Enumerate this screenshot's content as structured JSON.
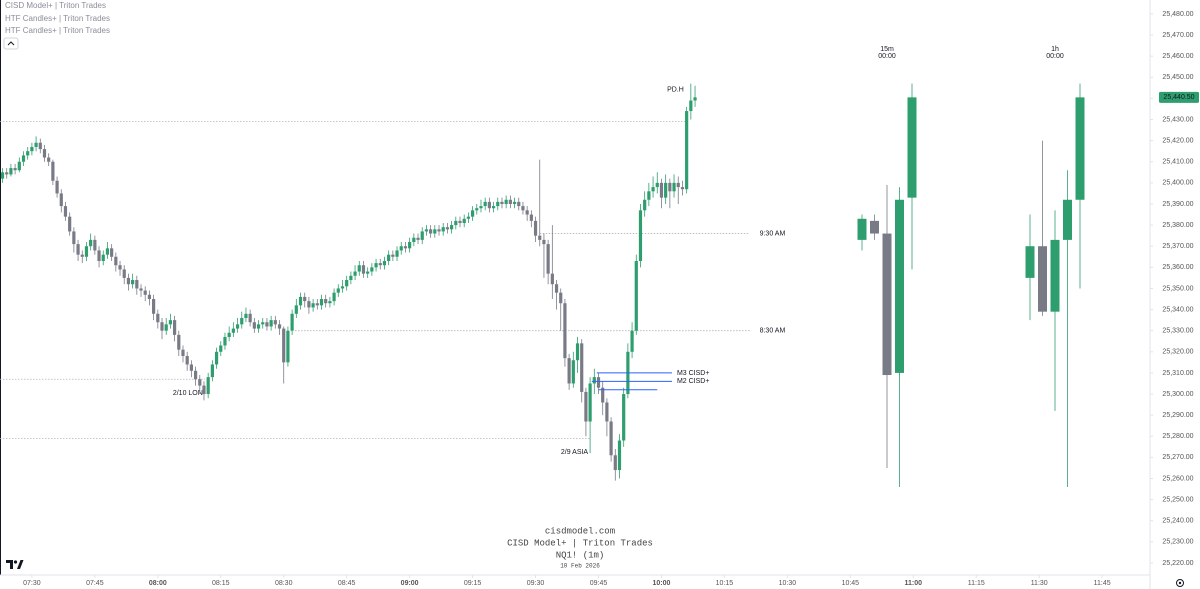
{
  "chart_data": {
    "type": "candlestick",
    "indicators": [
      "CISD Model+ | Triton Trades",
      "HTF Candles+ | Triton Trades",
      "HTF Candles+ | Triton Trades"
    ],
    "watermark": {
      "site": "cisdmodel.com",
      "title": "CISD Model+ | Triton Trades",
      "symbol": "NQ1! (1m)",
      "date": "10 Feb 2026"
    },
    "up_color": "#2f9e6e",
    "down_color": "#787b86",
    "level_color": "#b2b5be",
    "cisd_color": "#2962ff",
    "x": [
      443,
      444,
      445,
      446,
      447,
      448,
      449,
      450,
      451,
      452,
      453,
      454,
      455,
      456,
      457,
      458,
      459,
      460,
      461,
      462,
      463,
      464,
      465,
      466,
      467,
      468,
      469,
      470,
      471,
      472,
      473,
      474,
      475,
      476,
      477,
      478,
      479,
      480,
      481,
      482,
      483,
      484,
      485,
      486,
      487,
      488,
      489,
      490,
      491,
      492,
      493,
      494,
      495,
      496,
      497,
      498,
      499,
      500,
      501,
      502,
      503,
      504,
      505,
      506,
      507,
      508,
      509,
      510,
      511,
      512,
      513,
      514,
      515,
      516,
      517,
      518,
      519,
      520,
      521,
      522,
      523,
      524,
      525,
      526,
      527,
      528,
      529,
      530,
      531,
      532,
      533,
      534,
      535,
      536,
      537,
      538,
      539,
      540,
      541,
      542,
      543,
      544,
      545,
      546,
      547,
      548,
      549,
      550,
      551,
      552,
      553,
      554,
      555,
      556,
      557,
      558,
      559,
      560,
      561,
      562,
      563,
      564,
      565,
      566,
      567,
      568,
      569,
      570,
      571,
      572,
      573,
      574,
      575,
      576,
      577,
      578,
      579,
      580,
      581,
      582,
      583,
      584,
      585,
      586,
      587,
      588,
      589,
      590,
      591,
      592,
      593,
      594,
      595,
      596,
      597,
      598,
      599,
      600,
      601,
      602,
      603,
      604,
      605,
      606,
      607,
      608
    ],
    "open": [
      25402,
      25405,
      25404,
      25407,
      25406,
      25410,
      25413,
      25415,
      25417,
      25419,
      25416,
      25412,
      25410,
      25401,
      25395,
      25389,
      25384,
      25377,
      25371,
      25366,
      25365,
      25370,
      25373,
      25368,
      25363,
      25366,
      25369,
      25365,
      25361,
      25359,
      25355,
      25352,
      25354,
      25350,
      25349,
      25347,
      25345,
      25338,
      25334,
      25330,
      25333,
      25335,
      25328,
      25321,
      25318,
      25314,
      25311,
      25307,
      25304,
      25300,
      25308,
      25314,
      25320,
      25323,
      25327,
      25329,
      25331,
      25333,
      25336,
      25338,
      25334,
      25331,
      25333,
      25334,
      25332,
      25335,
      25333,
      25331,
      25315,
      25330,
      25338,
      25342,
      25346,
      25344,
      25341,
      25343,
      25342,
      25345,
      25343,
      25344,
      25348,
      25350,
      25351,
      25354,
      25356,
      25358,
      25361,
      25357,
      25358,
      25360,
      25362,
      25361,
      25363,
      25366,
      25365,
      25368,
      25370,
      25369,
      25372,
      25374,
      25373,
      25377,
      25378,
      25376,
      25378,
      25377,
      25379,
      25378,
      25380,
      25382,
      25381,
      25383,
      25384,
      25387,
      25388,
      25389,
      25391,
      25388,
      25389,
      25391,
      25390,
      25392,
      25390,
      25391,
      25389,
      25387,
      25385,
      25382,
      25375,
      25373,
      25371,
      25357,
      25352,
      25348,
      25343,
      25317,
      25305,
      25316,
      25324,
      25301,
      25287,
      25305,
      25308,
      25303,
      25296,
      25287,
      25271,
      25264,
      25278,
      25300,
      25320,
      25330,
      25363,
      25387,
      25392,
      25396,
      25398,
      25400,
      25393,
      25400,
      25396,
      25400,
      25398,
      25397,
      25434,
      25439
    ],
    "high": [
      25407,
      25407,
      25409,
      25409,
      25412,
      25415,
      25417,
      25419,
      25422,
      25421,
      25418,
      25414,
      25411,
      25403,
      25397,
      25391,
      25386,
      25379,
      25373,
      25368,
      25372,
      25376,
      25375,
      25370,
      25368,
      25372,
      25371,
      25367,
      25363,
      25361,
      25357,
      25357,
      25356,
      25352,
      25351,
      25349,
      25347,
      25340,
      25336,
      25336,
      25338,
      25337,
      25330,
      25323,
      25320,
      25316,
      25313,
      25309,
      25306,
      25310,
      25316,
      25322,
      25325,
      25329,
      25332,
      25334,
      25336,
      25339,
      25341,
      25340,
      25336,
      25335,
      25336,
      25336,
      25337,
      25337,
      25335,
      25332,
      25332,
      25340,
      25345,
      25348,
      25348,
      25346,
      25345,
      25345,
      25347,
      25347,
      25346,
      25350,
      25352,
      25354,
      25356,
      25358,
      25361,
      25363,
      25363,
      25360,
      25362,
      25364,
      25364,
      25365,
      25368,
      25368,
      25370,
      25372,
      25372,
      25374,
      25376,
      25376,
      25379,
      25380,
      25380,
      25380,
      25380,
      25381,
      25381,
      25382,
      25384,
      25384,
      25385,
      25386,
      25389,
      25390,
      25392,
      25393,
      25393,
      25391,
      25393,
      25393,
      25394,
      25394,
      25393,
      25393,
      25391,
      25389,
      25387,
      25384,
      25411,
      25376,
      25373,
      25380,
      25354,
      25350,
      25345,
      25319,
      25320,
      25327,
      25326,
      25303,
      25308,
      25312,
      25310,
      25306,
      25298,
      25289,
      25274,
      25281,
      25303,
      25324,
      25334,
      25366,
      25390,
      25396,
      25400,
      25403,
      25405,
      25402,
      25404,
      25402,
      25404,
      25403,
      25401,
      25436,
      25447,
      25446
    ],
    "low": [
      25400,
      25402,
      25403,
      25404,
      25405,
      25408,
      25411,
      25413,
      25415,
      25414,
      25410,
      25408,
      25399,
      25393,
      25386,
      25382,
      25375,
      25367,
      25363,
      25362,
      25363,
      25368,
      25366,
      25360,
      25361,
      25364,
      25363,
      25358,
      25356,
      25352,
      25349,
      25350,
      25347,
      25346,
      25344,
      25342,
      25335,
      25331,
      25326,
      25328,
      25331,
      25325,
      25318,
      25315,
      25311,
      25308,
      25304,
      25300,
      25297,
      25298,
      25306,
      25312,
      25318,
      25321,
      25325,
      25327,
      25329,
      25331,
      25334,
      25332,
      25329,
      25329,
      25331,
      25330,
      25330,
      25331,
      25328,
      25305,
      25313,
      25328,
      25336,
      25340,
      25341,
      25338,
      25339,
      25340,
      25340,
      25341,
      25341,
      25342,
      25346,
      25348,
      25349,
      25352,
      25354,
      25356,
      25355,
      25355,
      25356,
      25358,
      25359,
      25359,
      25361,
      25363,
      25363,
      25366,
      25367,
      25367,
      25370,
      25371,
      25371,
      25375,
      25374,
      25374,
      25375,
      25375,
      25376,
      25376,
      25378,
      25379,
      25379,
      25381,
      25382,
      25385,
      25386,
      25387,
      25386,
      25386,
      25387,
      25388,
      25388,
      25388,
      25388,
      25387,
      25385,
      25382,
      25379,
      25372,
      25370,
      25355,
      25352,
      25345,
      25340,
      25330,
      25313,
      25302,
      25303,
      25310,
      25296,
      25280,
      25272,
      25300,
      25300,
      25290,
      25280,
      25268,
      25259,
      25260,
      25275,
      25298,
      25317,
      25328,
      25360,
      25384,
      25389,
      25393,
      25395,
      25388,
      25390,
      25388,
      25393,
      25390,
      25394,
      25395,
      25430,
      25436
    ],
    "close": [
      25405,
      25404,
      25407,
      25406,
      25410,
      25413,
      25415,
      25417,
      25419,
      25416,
      25412,
      25410,
      25401,
      25395,
      25389,
      25384,
      25377,
      25371,
      25366,
      25365,
      25370,
      25373,
      25368,
      25363,
      25366,
      25369,
      25365,
      25361,
      25359,
      25355,
      25352,
      25354,
      25350,
      25349,
      25347,
      25345,
      25338,
      25334,
      25330,
      25333,
      25335,
      25328,
      25321,
      25318,
      25314,
      25311,
      25307,
      25304,
      25300,
      25308,
      25314,
      25320,
      25323,
      25327,
      25329,
      25331,
      25333,
      25336,
      25338,
      25334,
      25331,
      25333,
      25334,
      25332,
      25335,
      25333,
      25331,
      25315,
      25330,
      25338,
      25342,
      25346,
      25344,
      25341,
      25343,
      25342,
      25345,
      25343,
      25344,
      25348,
      25350,
      25351,
      25354,
      25356,
      25358,
      25361,
      25357,
      25358,
      25360,
      25362,
      25361,
      25363,
      25366,
      25365,
      25368,
      25370,
      25369,
      25372,
      25374,
      25373,
      25377,
      25378,
      25376,
      25378,
      25377,
      25379,
      25378,
      25380,
      25382,
      25381,
      25383,
      25384,
      25387,
      25388,
      25389,
      25391,
      25388,
      25389,
      25391,
      25390,
      25392,
      25390,
      25391,
      25389,
      25387,
      25385,
      25382,
      25375,
      25373,
      25371,
      25357,
      25352,
      25348,
      25343,
      25317,
      25305,
      25316,
      25324,
      25301,
      25287,
      25305,
      25308,
      25303,
      25296,
      25287,
      25271,
      25264,
      25278,
      25300,
      25320,
      25330,
      25363,
      25387,
      25392,
      25396,
      25398,
      25400,
      25393,
      25400,
      25396,
      25400,
      25398,
      25397,
      25434,
      25439,
      25440.5
    ],
    "last_price_label": "25,440.50",
    "xlim": [
      442.4,
      716.4
    ],
    "xticks": [
      {
        "value": 450,
        "label": "07:30"
      },
      {
        "value": 465,
        "label": "07:45"
      },
      {
        "value": 480,
        "label": "08:00"
      },
      {
        "value": 495,
        "label": "08:15"
      },
      {
        "value": 510,
        "label": "08:30"
      },
      {
        "value": 525,
        "label": "08:45"
      },
      {
        "value": 540,
        "label": "09:00"
      },
      {
        "value": 555,
        "label": "09:15"
      },
      {
        "value": 570,
        "label": "09:30"
      },
      {
        "value": 585,
        "label": "09:45"
      },
      {
        "value": 600,
        "label": "10:00"
      },
      {
        "value": 615,
        "label": "10:15"
      },
      {
        "value": 630,
        "label": "10:30"
      },
      {
        "value": 645,
        "label": "10:45"
      },
      {
        "value": 660,
        "label": "11:00"
      },
      {
        "value": 675,
        "label": "11:15"
      },
      {
        "value": 690,
        "label": "11:30"
      },
      {
        "value": 705,
        "label": "11:45"
      }
    ],
    "ylim": [
      25214.3,
      25486.6
    ],
    "yticks": [
      {
        "value": 25220,
        "label": "25,220.00"
      },
      {
        "value": 25230,
        "label": "25,230.00"
      },
      {
        "value": 25240,
        "label": "25,240.00"
      },
      {
        "value": 25250,
        "label": "25,250.00"
      },
      {
        "value": 25260,
        "label": "25,260.00"
      },
      {
        "value": 25270,
        "label": "25,270.00"
      },
      {
        "value": 25280,
        "label": "25,280.00"
      },
      {
        "value": 25290,
        "label": "25,290.00"
      },
      {
        "value": 25300,
        "label": "25,300.00"
      },
      {
        "value": 25310,
        "label": "25,310.00"
      },
      {
        "value": 25320,
        "label": "25,320.00"
      },
      {
        "value": 25330,
        "label": "25,330.00"
      },
      {
        "value": 25340,
        "label": "25,340.00"
      },
      {
        "value": 25350,
        "label": "25,350.00"
      },
      {
        "value": 25360,
        "label": "25,360.00"
      },
      {
        "value": 25370,
        "label": "25,370.00"
      },
      {
        "value": 25380,
        "label": "25,380.00"
      },
      {
        "value": 25390,
        "label": "25,390.00"
      },
      {
        "value": 25400,
        "label": "25,400.00"
      },
      {
        "value": 25410,
        "label": "25,410.00"
      },
      {
        "value": 25420,
        "label": "25,420.00"
      },
      {
        "value": 25430,
        "label": "25,430.00"
      },
      {
        "value": 25440,
        "label": "25,440.00"
      },
      {
        "value": 25450,
        "label": "25,450.00"
      },
      {
        "value": 25460,
        "label": "25,460.00"
      },
      {
        "value": 25470,
        "label": "25,470.00"
      },
      {
        "value": 25480,
        "label": "25,480.00"
      }
    ],
    "levels": [
      {
        "label": "PD.H",
        "value": 25429,
        "start": 442.4,
        "end": 605.8,
        "label_side": "above"
      },
      {
        "label": "9:30 AM",
        "value": 25376,
        "start": 571,
        "end": 621,
        "label_side": "right"
      },
      {
        "label": "8:30 AM",
        "value": 25330,
        "start": 512.7,
        "end": 621,
        "label_side": "right"
      },
      {
        "label": "2/10 LON",
        "value": 25307,
        "start": 442.4,
        "end": 491.2,
        "label_side": "below"
      },
      {
        "label": "2/9 ASIA",
        "value": 25279,
        "start": 442.4,
        "end": 583,
        "label_side": "below"
      }
    ],
    "cisd": [
      {
        "label": "M3 CISD+",
        "value": 25310,
        "start": 584.6,
        "end": 602.5
      },
      {
        "label": "M2 CISD+",
        "value": 25306,
        "start": 583.4,
        "end": 602.5
      },
      {
        "value": 25302,
        "start": 585,
        "end": 599
      }
    ],
    "htf": [
      {
        "timeframe": "15m",
        "time": "00:00",
        "open": [
          25373,
          25382,
          25376,
          25310,
          25393
        ],
        "high": [
          25385,
          25385,
          25399,
          25398,
          25447
        ],
        "low": [
          25368,
          25373,
          25265,
          25256,
          25359
        ],
        "close": [
          25383,
          25376,
          25309,
          25392,
          25440.5
        ]
      },
      {
        "timeframe": "1h",
        "time": "00:00",
        "open": [
          25355,
          25370,
          25339,
          25373,
          25392
        ],
        "high": [
          25385,
          25420,
          25387,
          25406,
          25447
        ],
        "low": [
          25335,
          25337,
          25292,
          25256,
          25350
        ],
        "close": [
          25370,
          25339,
          25373,
          25392,
          25440.5
        ]
      }
    ]
  }
}
